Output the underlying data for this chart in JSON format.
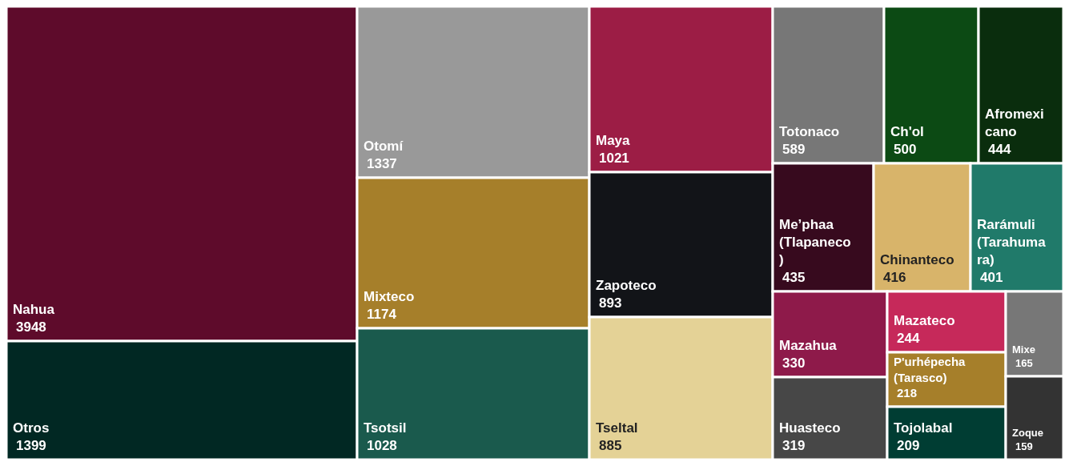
{
  "chart_data": {
    "type": "other",
    "categories": [
      "Nahua",
      "Otros",
      "Otomí",
      "Mixteco",
      "Tsotsil",
      "Maya",
      "Zapoteco",
      "Tseltal",
      "Totonaco",
      "Ch'ol",
      "Afromexicano",
      "Me’phaa (Tlapaneco)",
      "Chinanteco",
      "Rarámuli (Tarahumara)",
      "Mazahua",
      "Huasteco",
      "Mazateco",
      "P'urhépecha (Tarasco)",
      "Tojolabal",
      "Mixe",
      "Zoque"
    ],
    "values": [
      3948,
      1399,
      1337,
      1174,
      1028,
      1021,
      893,
      885,
      589,
      500,
      444,
      435,
      416,
      401,
      330,
      319,
      244,
      218,
      209,
      165,
      159
    ],
    "colors": [
      "#5e0b2b",
      "#012823",
      "#999999",
      "#a67f2a",
      "#1a5a4d",
      "#9c1d45",
      "#121418",
      "#e4d296",
      "#777777",
      "#0c4a14",
      "#0a2d0d",
      "#370a1e",
      "#d8b46a",
      "#207a6a",
      "#8e1a4a",
      "#474747",
      "#c6295a",
      "#a67f2a",
      "#003d33",
      "#777777",
      "#333333"
    ],
    "data_labels": true
  }
}
